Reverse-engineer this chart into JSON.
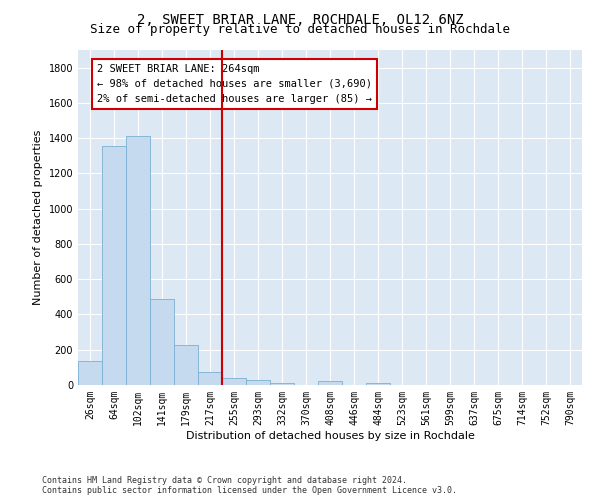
{
  "title": "2, SWEET BRIAR LANE, ROCHDALE, OL12 6NZ",
  "subtitle": "Size of property relative to detached houses in Rochdale",
  "xlabel": "Distribution of detached houses by size in Rochdale",
  "ylabel": "Number of detached properties",
  "bar_labels": [
    "26sqm",
    "64sqm",
    "102sqm",
    "141sqm",
    "179sqm",
    "217sqm",
    "255sqm",
    "293sqm",
    "332sqm",
    "370sqm",
    "408sqm",
    "446sqm",
    "484sqm",
    "523sqm",
    "561sqm",
    "599sqm",
    "637sqm",
    "675sqm",
    "714sqm",
    "752sqm",
    "790sqm"
  ],
  "bar_values": [
    135,
    1355,
    1410,
    490,
    225,
    75,
    40,
    28,
    10,
    0,
    20,
    0,
    10,
    0,
    0,
    0,
    0,
    0,
    0,
    0,
    0
  ],
  "bar_color": "#c5d9ef",
  "bar_edgecolor": "#7aafd4",
  "vline_color": "#cc0000",
  "annotation_line1": "2 SWEET BRIAR LANE: 264sqm",
  "annotation_line2": "← 98% of detached houses are smaller (3,690)",
  "annotation_line3": "2% of semi-detached houses are larger (85) →",
  "annotation_box_edgecolor": "#cc0000",
  "ylim": [
    0,
    1900
  ],
  "yticks": [
    0,
    200,
    400,
    600,
    800,
    1000,
    1200,
    1400,
    1600,
    1800
  ],
  "bg_color": "#dce9f5",
  "grid_color": "#ffffff",
  "footer_line1": "Contains HM Land Registry data © Crown copyright and database right 2024.",
  "footer_line2": "Contains public sector information licensed under the Open Government Licence v3.0.",
  "title_fontsize": 10,
  "subtitle_fontsize": 9,
  "tick_fontsize": 7,
  "ylabel_fontsize": 8,
  "xlabel_fontsize": 8,
  "footer_fontsize": 6,
  "annotation_fontsize": 7.5,
  "vline_bin_index": 6
}
